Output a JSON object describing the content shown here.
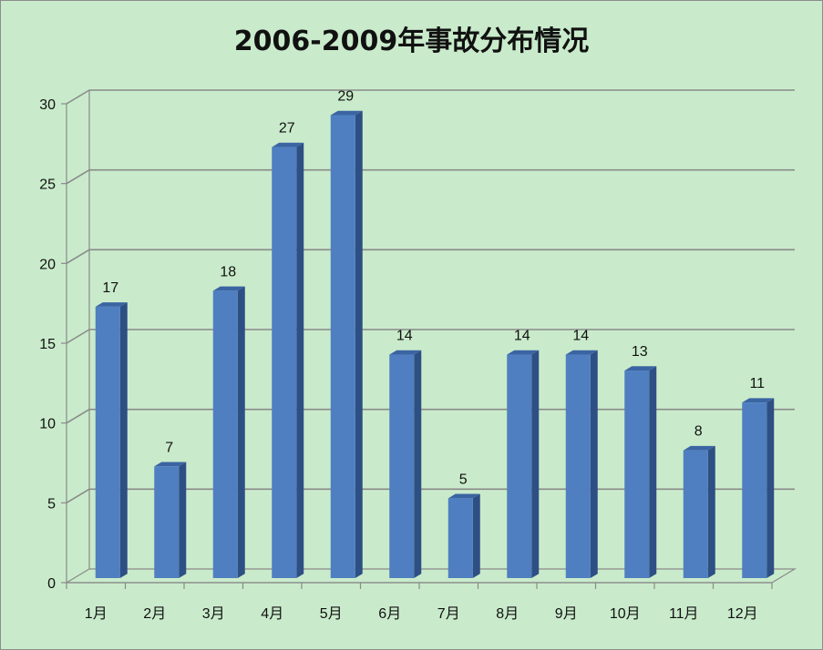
{
  "chart_data": {
    "type": "bar",
    "title": "2006-2009年事故分布情况",
    "xlabel": "",
    "ylabel": "",
    "categories": [
      "1月",
      "2月",
      "3月",
      "4月",
      "5月",
      "6月",
      "7月",
      "8月",
      "9月",
      "10月",
      "11月",
      "12月"
    ],
    "values": [
      17,
      7,
      18,
      27,
      29,
      14,
      5,
      14,
      14,
      13,
      8,
      11
    ],
    "ylim": [
      0,
      30
    ],
    "yticks": [
      0,
      5,
      10,
      15,
      20,
      25,
      30
    ],
    "grid": true,
    "legend": "none",
    "style": "3d-column"
  },
  "colors": {
    "background": "#c9ebcb",
    "bar_front": "#4f7fc0",
    "bar_side": "#2e4f84",
    "bar_top": "#3b64a3",
    "grid": "#8a8a8a"
  }
}
